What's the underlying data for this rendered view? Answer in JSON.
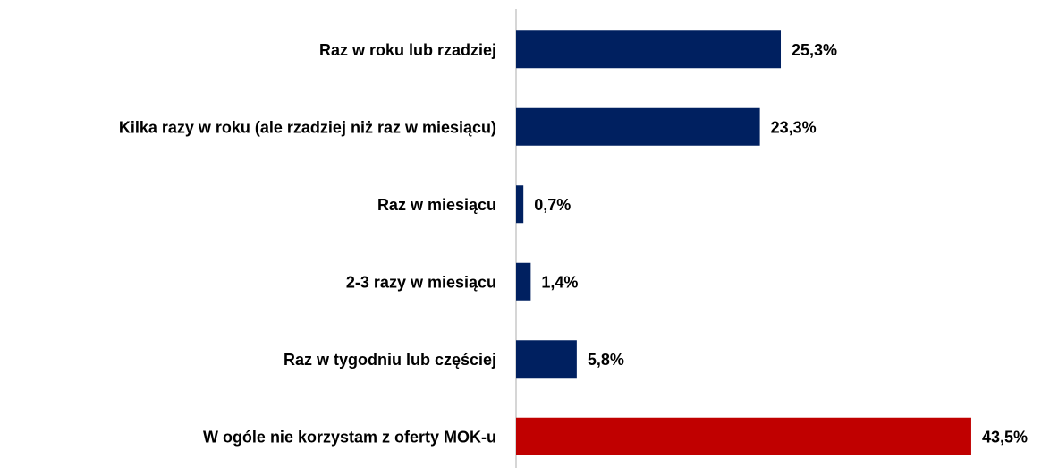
{
  "chart_data": {
    "type": "bar",
    "orientation": "horizontal",
    "categories": [
      "Raz w roku lub rzadziej",
      "Kilka razy w roku (ale rzadziej niż raz w miesiącu)",
      "Raz w miesiącu",
      "2-3 razy w miesiącu",
      "Raz w tygodniu lub częściej",
      "W ogóle nie korzystam z oferty MOK-u"
    ],
    "values": [
      25.3,
      23.3,
      0.7,
      1.4,
      5.8,
      43.5
    ],
    "value_labels": [
      "25,3%",
      "23,3%",
      "0,7%",
      "1,4%",
      "5,8%",
      "43,5%"
    ],
    "colors": [
      "#002060",
      "#002060",
      "#002060",
      "#002060",
      "#002060",
      "#c00000"
    ],
    "xlim": [
      0,
      50
    ]
  }
}
